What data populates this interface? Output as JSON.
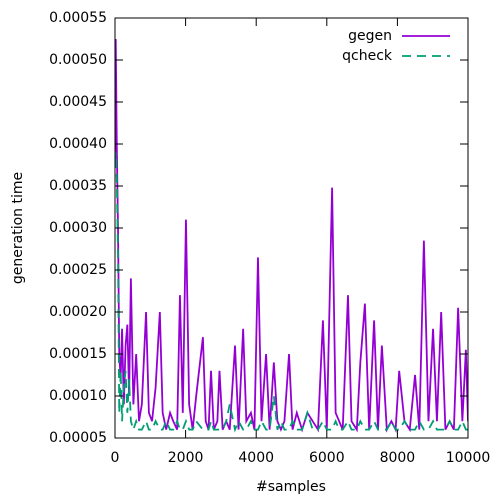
{
  "chart_data": {
    "type": "line",
    "xlabel": "#samples",
    "ylabel": "generation time",
    "x": [
      0,
      20,
      50,
      85,
      120,
      160,
      200,
      250,
      300,
      350,
      400,
      450,
      520,
      600,
      680,
      760,
      880,
      960,
      1050,
      1150,
      1270,
      1350,
      1450,
      1560,
      1650,
      1760,
      1840,
      1920,
      2010,
      2100,
      2200,
      2300,
      2490,
      2570,
      2650,
      2720,
      2800,
      2900,
      2960,
      3050,
      3150,
      3250,
      3400,
      3500,
      3630,
      3720,
      3850,
      3950,
      4050,
      4150,
      4280,
      4380,
      4500,
      4600,
      4700,
      4800,
      4930,
      5030,
      5150,
      5300,
      5450,
      5600,
      5750,
      5890,
      6000,
      6150,
      6250,
      6350,
      6450,
      6600,
      6700,
      6850,
      6950,
      7080,
      7200,
      7340,
      7450,
      7560,
      7700,
      7830,
      7950,
      8050,
      8200,
      8350,
      8500,
      8620,
      8750,
      8880,
      9010,
      9120,
      9240,
      9360,
      9480,
      9600,
      9720,
      9840,
      9940,
      10000
    ],
    "series": [
      {
        "name": "gegen",
        "color": "#9400d3",
        "dash": false,
        "values": [
          0.00038,
          0.000525,
          0.0004,
          0.0003,
          0.00015,
          0.00012,
          0.00018,
          9e-05,
          0.00016,
          0.000185,
          0.0001,
          0.00024,
          9e-05,
          0.00015,
          7e-05,
          9e-05,
          0.0002,
          8e-05,
          7e-05,
          0.00011,
          0.0002,
          8e-05,
          6e-05,
          8e-05,
          7e-05,
          6e-05,
          0.00022,
          8e-05,
          0.00031,
          9e-05,
          6e-05,
          0.0001,
          0.00017,
          7e-05,
          6e-05,
          0.00013,
          6e-05,
          7e-05,
          0.00013,
          6e-05,
          7e-05,
          6e-05,
          0.00016,
          6e-05,
          0.00018,
          7e-05,
          8e-05,
          6e-05,
          0.000265,
          7e-05,
          0.00015,
          6e-05,
          0.00014,
          7e-05,
          6e-05,
          7e-05,
          0.00015,
          6e-05,
          8e-05,
          6e-05,
          8e-05,
          7e-05,
          6e-05,
          0.00019,
          6e-05,
          0.000348,
          8e-05,
          7e-05,
          6e-05,
          0.00022,
          7e-05,
          6e-05,
          0.00014,
          0.00021,
          6e-05,
          0.00019,
          6e-05,
          0.00016,
          6e-05,
          7e-05,
          6e-05,
          0.00013,
          7e-05,
          6e-05,
          0.000125,
          6e-05,
          0.000285,
          7e-05,
          0.00018,
          7e-05,
          0.0002,
          6e-05,
          7e-05,
          6e-05,
          0.000205,
          7e-05,
          0.000155,
          7e-05
        ]
      },
      {
        "name": "qcheck",
        "color": "#009e73",
        "dash": true,
        "values": [
          0.00038,
          0.00039,
          0.00036,
          0.00027,
          8e-05,
          0.00013,
          7e-05,
          0.00011,
          0.00013,
          8e-05,
          0.00012,
          7e-05,
          6e-05,
          7e-05,
          6e-05,
          6e-05,
          7e-05,
          6e-05,
          6e-05,
          7e-05,
          6e-05,
          6e-05,
          7e-05,
          6e-05,
          6e-05,
          7e-05,
          6e-05,
          6e-05,
          7e-05,
          6e-05,
          6e-05,
          7e-05,
          6e-05,
          6e-05,
          6e-05,
          7e-05,
          6e-05,
          6e-05,
          6e-05,
          6e-05,
          7e-05,
          9e-05,
          6e-05,
          7e-05,
          6e-05,
          6e-05,
          7e-05,
          6e-05,
          6e-05,
          7e-05,
          6e-05,
          6e-05,
          0.0001,
          6e-05,
          7e-05,
          6e-05,
          6e-05,
          7e-05,
          6e-05,
          6e-05,
          8e-05,
          6e-05,
          6e-05,
          7e-05,
          6e-05,
          6e-05,
          7e-05,
          6e-05,
          6e-05,
          7e-05,
          6e-05,
          6e-05,
          7e-05,
          6e-05,
          6e-05,
          7e-05,
          6e-05,
          6e-05,
          6e-05,
          7e-05,
          6e-05,
          6e-05,
          7e-05,
          6e-05,
          6e-05,
          7e-05,
          6e-05,
          6e-05,
          7e-05,
          6e-05,
          6e-05,
          6e-05,
          7e-05,
          6e-05,
          6e-05,
          7e-05,
          6e-05,
          6e-05
        ]
      }
    ],
    "xlim": [
      0,
      10000
    ],
    "xticks": [
      0,
      2000,
      4000,
      6000,
      8000,
      10000
    ],
    "ylim": [
      5e-05,
      0.00055
    ],
    "yticks": [
      {
        "value": 5e-05,
        "label": "0.00005"
      },
      {
        "value": 0.0001,
        "label": "0.00010"
      },
      {
        "value": 0.00015,
        "label": "0.00015"
      },
      {
        "value": 0.0002,
        "label": "0.00020"
      },
      {
        "value": 0.00025,
        "label": "0.00025"
      },
      {
        "value": 0.0003,
        "label": "0.00030"
      },
      {
        "value": 0.00035,
        "label": "0.00035"
      },
      {
        "value": 0.0004,
        "label": "0.00040"
      },
      {
        "value": 0.00045,
        "label": "0.00045"
      },
      {
        "value": 0.0005,
        "label": "0.00050"
      },
      {
        "value": 0.00055,
        "label": "0.00055"
      }
    ],
    "grid": false,
    "legend": "top-right"
  }
}
